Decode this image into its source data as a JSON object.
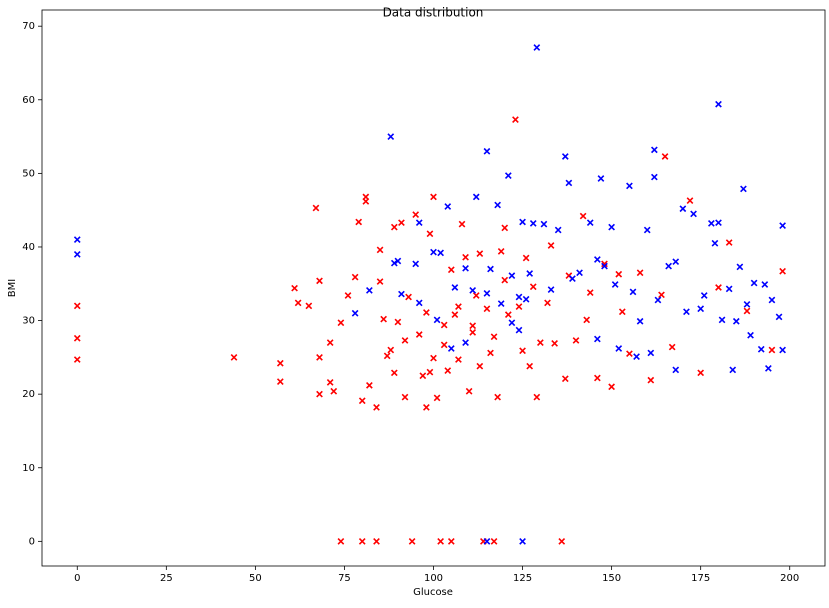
{
  "chart_data": {
    "type": "scatter",
    "title": "Data distribution",
    "x_label": "Glucose",
    "y_label": "BMI",
    "xlim": [
      -9.9,
      209.9
    ],
    "ylim": [
      -3.35,
      72.2
    ],
    "xticks": [
      0,
      25,
      50,
      75,
      100,
      125,
      150,
      175,
      200
    ],
    "yticks": [
      0,
      10,
      20,
      30,
      40,
      50,
      60,
      70
    ],
    "grid": false,
    "marker": "x",
    "series": [
      {
        "color": "#ff0000",
        "x": [
          0,
          0,
          0,
          44,
          57,
          57,
          61,
          62,
          65,
          67,
          68,
          68,
          68,
          71,
          71,
          72,
          74,
          74,
          76,
          78,
          79,
          80,
          80,
          81,
          81,
          82,
          84,
          84,
          85,
          86,
          87,
          88,
          89,
          90,
          91,
          92,
          93,
          94,
          95,
          96,
          97,
          98,
          99,
          100,
          100,
          101,
          102,
          103,
          104,
          105,
          106,
          107,
          108,
          109,
          110,
          111,
          112,
          113,
          114,
          115,
          116,
          117,
          118,
          119,
          120,
          121,
          123,
          124,
          125,
          126,
          127,
          129,
          130,
          132,
          134,
          136,
          137,
          138,
          140,
          142,
          144,
          146,
          148,
          150,
          152,
          155,
          158,
          161,
          164,
          165,
          167,
          172,
          175,
          180,
          183,
          188,
          195,
          198,
          85,
          92,
          98,
          103,
          107,
          111,
          117,
          120,
          128,
          133,
          143,
          153,
          99,
          105,
          113,
          89
        ],
        "values": [
          32,
          27.6,
          24.7,
          25,
          24.2,
          21.7,
          34.4,
          32.4,
          32,
          45.3,
          35.4,
          25,
          20,
          27,
          21.6,
          20.4,
          29.7,
          0,
          33.4,
          35.9,
          43.4,
          19.1,
          0,
          46.8,
          46.2,
          21.2,
          18.2,
          0,
          39.6,
          30.2,
          25.2,
          26,
          42.7,
          29.8,
          43.3,
          19.6,
          33.2,
          0,
          44.4,
          28.1,
          22.5,
          18.2,
          41.8,
          24.9,
          46.8,
          19.5,
          0,
          29.4,
          23.2,
          0,
          30.8,
          24.7,
          43.1,
          38.6,
          20.4,
          28.4,
          33.4,
          23.8,
          0,
          31.6,
          25.6,
          0,
          19.6,
          39.4,
          42.6,
          30.8,
          57.3,
          31.9,
          25.9,
          38.5,
          23.8,
          19.6,
          27,
          32.4,
          26.9,
          0,
          22.1,
          36.1,
          27.3,
          44.2,
          33.8,
          22.2,
          37.7,
          21,
          36.3,
          25.5,
          36.5,
          21.9,
          33.5,
          52.3,
          26.4,
          46.3,
          22.9,
          34.5,
          40.6,
          31.3,
          26,
          36.7,
          35.3,
          27.3,
          31.1,
          26.7,
          31.9,
          29.3,
          27.8,
          35.5,
          34.6,
          40.2,
          30.1,
          31.2,
          23,
          36.9,
          39.1,
          22.9
        ]
      },
      {
        "color": "#0000ff",
        "x": [
          0,
          0,
          88,
          129,
          180,
          115,
          137,
          162,
          121,
          138,
          147,
          155,
          162,
          187,
          104,
          112,
          118,
          198,
          178,
          180,
          170,
          173,
          160,
          150,
          144,
          135,
          131,
          125,
          128,
          96,
          116,
          109,
          102,
          100,
          90,
          89,
          95,
          106,
          111,
          115,
          122,
          124,
          126,
          133,
          139,
          141,
          146,
          148,
          151,
          156,
          158,
          163,
          166,
          168,
          171,
          176,
          179,
          183,
          186,
          188,
          190,
          193,
          195,
          197,
          194,
          184,
          168,
          146,
          122,
          124,
          127,
          119,
          109,
          105,
          101,
          96,
          91,
          82,
          78,
          115,
          125,
          152,
          157,
          161,
          175,
          181,
          189,
          192,
          198,
          185
        ],
        "values": [
          41,
          39,
          55,
          67.1,
          59.4,
          53,
          52.3,
          53.2,
          49.7,
          48.7,
          49.3,
          48.3,
          49.5,
          47.9,
          45.5,
          46.8,
          45.7,
          42.9,
          43.2,
          43.3,
          45.2,
          44.5,
          42.3,
          42.7,
          43.3,
          42.3,
          43.1,
          43.4,
          43.2,
          43.3,
          37,
          37.1,
          39.2,
          39.3,
          38.1,
          37.8,
          37.7,
          34.5,
          34.1,
          33.7,
          36.1,
          33.2,
          32.9,
          34.2,
          35.7,
          36.5,
          38.3,
          37.4,
          34.9,
          33.9,
          29.9,
          32.8,
          37.4,
          38,
          31.2,
          33.4,
          40.5,
          34.3,
          37.3,
          32.2,
          35.1,
          34.9,
          32.8,
          30.5,
          23.5,
          23.3,
          23.3,
          27.5,
          29.7,
          28.7,
          36.4,
          32.3,
          27,
          26.2,
          30.1,
          32.4,
          33.6,
          34.1,
          31,
          0,
          0,
          26.2,
          25.1,
          25.6,
          31.6,
          30.1,
          28,
          26.1,
          26,
          29.9
        ]
      }
    ]
  }
}
